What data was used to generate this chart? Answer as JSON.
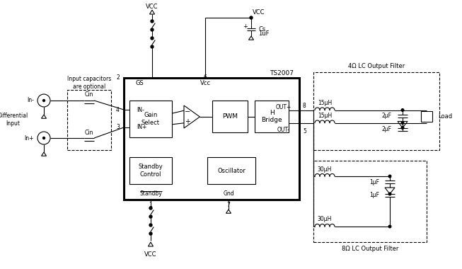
{
  "bg_color": "#ffffff",
  "line_color": "#000000",
  "text_color": "#000000",
  "fig_width": 6.53,
  "fig_height": 3.8,
  "dpi": 100,
  "labels": {
    "vcc_top": "VCC",
    "vcc_bottom": "VCC",
    "vcc_cs": "VCC",
    "cs_label": "Cs",
    "cs_val": "1uF",
    "ts2007": "TS2007",
    "in_minus": "In-",
    "in_plus": "In+",
    "diff_input": "Differential\nInput",
    "cap_optional": "Input capacitors\nare optional",
    "cin_top": "Cin",
    "cin_bot": "Cin",
    "gs_label": "GS",
    "vcc_label": "Vcc",
    "in_minus_pin": "IN-",
    "in_plus_pin": "IN+",
    "gain_select": "Gain\nSelect",
    "pwm_label": "PWM",
    "h_bridge": "H\nBridge",
    "out_plus": "OUT+",
    "out_minus": "OUT-",
    "standby_ctrl": "Standby\nControl",
    "oscillator": "Oscillator",
    "standby_pin": "Standby",
    "gnd_pin": "Gnd",
    "pin4": "4",
    "pin3": "3",
    "pin8": "8",
    "pin5": "5",
    "pin2": "2",
    "pin6": "6",
    "pin1": "1",
    "pin7": "7",
    "filter_4ohm": "4Ω LC Output Filter",
    "filter_8ohm": "8Ω LC Output Filter",
    "ind_15uH_top": "15μH",
    "ind_15uH_bot": "15μH",
    "cap_2uF_top": "2μF",
    "cap_2uF_bot": "2μF",
    "ind_30uH_top": "30μH",
    "ind_30uH_bot": "30μH",
    "cap_1uF_top": "1μF",
    "cap_1uF_bot": "1μF",
    "load_label": "Load"
  }
}
